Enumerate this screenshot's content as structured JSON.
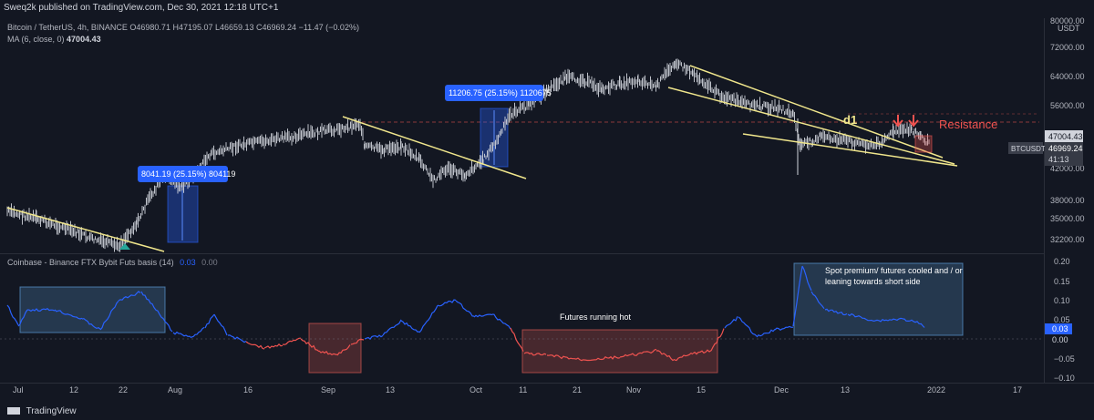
{
  "header": {
    "published": "Sweq2k published on TradingView.com, Dec 30, 2021 12:18 UTC+1"
  },
  "legend": {
    "symbol": "Bitcoin / TetherUS, 4h, BINANCE",
    "ohlc": "O46980.71 H47195.07 L46659.13 C46969.24 −11.47 (−0.02%)",
    "ma_label": "MA (6, close, 0)",
    "ma_value": "47004.43",
    "indicator": "Coinbase - Binance FTX Bybit Futs basis (14)",
    "indicator_value": "0.03",
    "indicator_value2": "0.00"
  },
  "price_axis": {
    "currency": "USDT",
    "top_label": "80000.00",
    "ticks": [
      "72000.00",
      "64000.00",
      "56000.00",
      "47004.43",
      "42000.00",
      "38000.00",
      "35000.00",
      "32200.00"
    ]
  },
  "badges": {
    "ma": "47004.43",
    "symbol": "BTCUSDT",
    "close": "46969.24",
    "countdown": "41:13"
  },
  "indicator_axis": {
    "ticks": [
      "0.20",
      "0.15",
      "0.10",
      "0.05",
      "0.00",
      "−0.05",
      "−0.10"
    ],
    "badge_value": "0.03",
    "zero_badge": "0.00"
  },
  "time_axis": {
    "labels": [
      "Jul",
      "12",
      "22",
      "Aug",
      "16",
      "Sep",
      "13",
      "Oct",
      "11",
      "21",
      "Nov",
      "15",
      "Dec",
      "13",
      "2022",
      "17"
    ]
  },
  "annotations": {
    "measure1": "8041.19 (25.15%) 804119",
    "measure2": "11206.75 (25.15%) 1120675",
    "d1": "d1",
    "resistance": "Resistance",
    "futures_hot": "Futures running hot",
    "spot_premium_1": "Spot premium/ futures cooled and / or",
    "spot_premium_2": "leaning towards short side"
  },
  "footer": {
    "logo": "TradingView"
  },
  "colors": {
    "background": "#131722",
    "candle": "#d1d4dc",
    "trendline": "#f0e68c",
    "measure_box": "#2962ff",
    "resistance": "#ef5350",
    "basis_positive": "#2962ff",
    "basis_negative": "#ef5350",
    "highlight_blue": "#5b9bd5",
    "highlight_red": "#c0504d"
  }
}
